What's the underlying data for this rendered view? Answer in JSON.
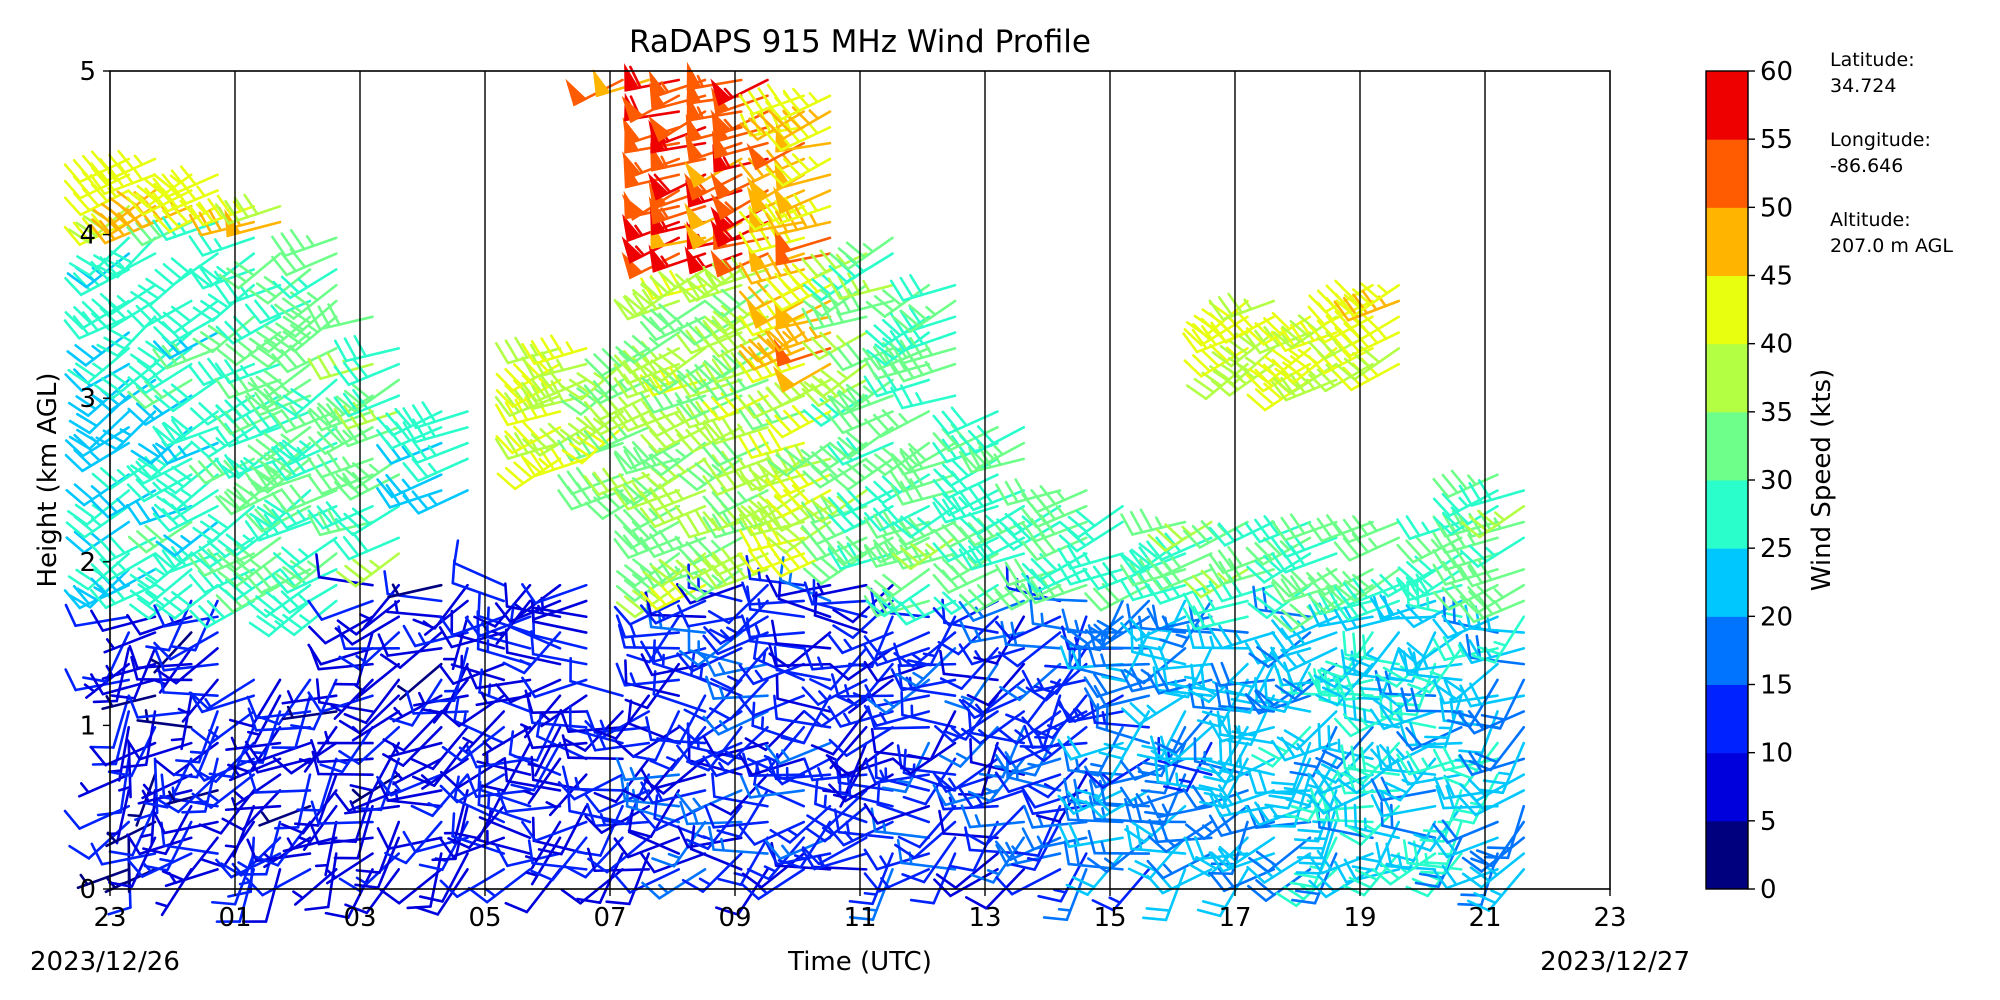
{
  "chart_data": {
    "type": "wind_barbs",
    "title": "RaDAPS 915 MHz Wind Profile",
    "xlabel": "Time (UTC)",
    "ylabel": "Height (km AGL)",
    "x_tick_labels": [
      "23",
      "01",
      "03",
      "05",
      "07",
      "09",
      "11",
      "13",
      "15",
      "17",
      "19",
      "21",
      "23"
    ],
    "x_range_hours": [
      0,
      24
    ],
    "y_ticks": [
      "0",
      "1",
      "2",
      "3",
      "4",
      "5"
    ],
    "ylim": [
      0,
      5
    ],
    "start_date_label": "2023/12/26",
    "end_date_label": "2023/12/27",
    "vertical_grid_every_hours": 2,
    "colorbar": {
      "label": "Wind Speed (kts)",
      "bounds": [
        0,
        5,
        10,
        15,
        20,
        25,
        30,
        35,
        40,
        45,
        50,
        55,
        60
      ],
      "tick_labels": [
        "0",
        "5",
        "10",
        "15",
        "20",
        "25",
        "30",
        "35",
        "40",
        "45",
        "50",
        "55",
        "60"
      ],
      "colors": [
        "#00007f",
        "#0000dd",
        "#0022ff",
        "#0074ff",
        "#00c8ff",
        "#2affcc",
        "#6dff89",
        "#b2ff44",
        "#e8ff0f",
        "#ffb400",
        "#ff5b00",
        "#ee0000",
        "#7f0000"
      ]
    },
    "profile_groups": [
      {
        "t": 0.3,
        "low": [
          0.1,
          1.7,
          8,
          220
        ],
        "mid": [
          1.8,
          4.0,
          26,
          235
        ],
        "high": [
          4.0,
          4.5,
          44,
          240
        ]
      },
      {
        "t": 1.3,
        "low": [
          0.1,
          1.8,
          9,
          235
        ],
        "mid": [
          1.8,
          4.1,
          28,
          240
        ],
        "high": [
          4.1,
          4.4,
          46,
          245
        ]
      },
      {
        "t": 2.3,
        "low": [
          0.1,
          1.3,
          9,
          225
        ],
        "mid": [
          1.7,
          4.0,
          29,
          240
        ],
        "high": [
          4.0,
          4.2,
          44,
          245
        ]
      },
      {
        "t": 3.2,
        "low": [
          0.1,
          1.3,
          8,
          230
        ],
        "mid": [
          1.7,
          4.0,
          30,
          240
        ]
      },
      {
        "t": 4.2,
        "low": [
          0.1,
          1.9,
          9,
          240
        ],
        "mid": [
          2.0,
          3.5,
          32,
          245
        ]
      },
      {
        "t": 5.3,
        "low": [
          0.1,
          1.9,
          9,
          235
        ],
        "mid": [
          2.4,
          3.0,
          27,
          245
        ]
      },
      {
        "t": 6.3,
        "low": [
          0.1,
          1.9,
          10,
          250
        ]
      },
      {
        "t": 7.2,
        "low": [
          0.1,
          1.9,
          9,
          250
        ],
        "mid": [
          2.6,
          3.4,
          40,
          245
        ]
      },
      {
        "t": 8.2,
        "low": [
          0.1,
          1.2,
          10,
          245
        ],
        "mid": [
          2.4,
          3.4,
          36,
          240
        ],
        "high": [
          4.9,
          5.0,
          52,
          250
        ]
      },
      {
        "t": 9.1,
        "low": [
          0.1,
          1.8,
          12,
          250
        ],
        "mid": [
          1.8,
          4.0,
          36,
          245
        ],
        "high": [
          3.8,
          5.0,
          54,
          250
        ]
      },
      {
        "t": 10.1,
        "low": [
          0.1,
          1.9,
          13,
          250
        ],
        "mid": [
          1.9,
          4.0,
          36,
          245
        ],
        "high": [
          3.8,
          5.0,
          53,
          250
        ]
      },
      {
        "t": 11.1,
        "low": [
          0.1,
          1.9,
          12,
          250
        ],
        "mid": [
          2.0,
          4.5,
          38,
          245
        ],
        "high": [
          3.2,
          4.9,
          47,
          250
        ]
      },
      {
        "t": 12.1,
        "low": [
          0.1,
          1.9,
          11,
          245
        ],
        "mid": [
          2.0,
          4.0,
          33,
          245
        ]
      },
      {
        "t": 13.1,
        "low": [
          0.1,
          1.7,
          12,
          245
        ],
        "mid": [
          1.7,
          3.7,
          31,
          245
        ]
      },
      {
        "t": 14.2,
        "low": [
          0.1,
          1.8,
          13,
          240
        ],
        "mid": [
          1.8,
          3.0,
          30,
          245
        ]
      },
      {
        "t": 15.2,
        "low": [
          0.1,
          1.8,
          14,
          240
        ],
        "mid": [
          1.8,
          2.5,
          30,
          245
        ]
      },
      {
        "t": 16.2,
        "low": [
          0.1,
          1.8,
          18,
          245
        ],
        "mid": [
          1.8,
          2.4,
          30,
          245
        ]
      },
      {
        "t": 17.2,
        "low": [
          0.1,
          1.8,
          19,
          240
        ],
        "mid": [
          1.8,
          2.3,
          32,
          245
        ]
      },
      {
        "t": 18.2,
        "low": [
          0.1,
          1.6,
          20,
          240
        ],
        "mid": [
          1.6,
          2.3,
          31,
          245
        ],
        "high": [
          3.2,
          3.6,
          40,
          240
        ]
      },
      {
        "t": 19.2,
        "low": [
          0.1,
          1.7,
          22,
          240
        ],
        "mid": [
          1.7,
          2.3,
          32,
          245
        ],
        "high": [
          3.1,
          3.5,
          40,
          240
        ]
      },
      {
        "t": 20.2,
        "low": [
          0.1,
          1.7,
          24,
          240
        ],
        "mid": [
          1.7,
          2.3,
          31,
          245
        ],
        "high": [
          3.2,
          3.7,
          41,
          240
        ]
      },
      {
        "t": 21.2,
        "low": [
          0.1,
          1.8,
          23,
          240
        ],
        "mid": [
          1.8,
          2.3,
          30,
          245
        ]
      },
      {
        "t": 22.2,
        "low": [
          0.1,
          1.7,
          22,
          240
        ],
        "mid": [
          1.7,
          2.6,
          31,
          245
        ]
      }
    ]
  },
  "site": {
    "latitude_label": "Latitude:",
    "latitude_value": "34.724",
    "longitude_label": "Longitude:",
    "longitude_value": "-86.646",
    "altitude_label": "Altitude:",
    "altitude_value": "207.0 m AGL"
  }
}
